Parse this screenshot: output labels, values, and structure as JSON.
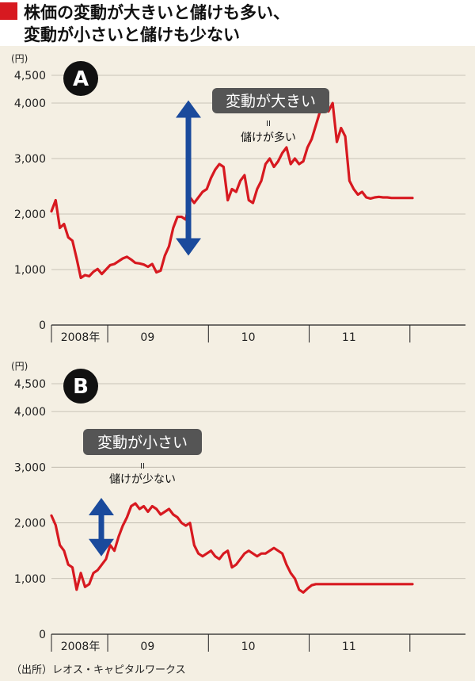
{
  "title": {
    "line1": "株価の変動が大きいと儲けも多い、",
    "line2": "変動が小さいと儲けも少ない"
  },
  "source": "（出所）レオス・キャピタルワークス",
  "colors": {
    "line": "#d71920",
    "arrow": "#1a4a9c",
    "callout": "#555555",
    "background": "#f4efe3",
    "header_mark": "#d71920"
  },
  "chart_data": [
    {
      "type": "line",
      "panel_label": "A",
      "unit": "(円)",
      "callout": "変動が大きい",
      "equals": "II",
      "note": "儲けが多い",
      "yticks": [
        0,
        1000,
        2000,
        3000,
        4000,
        4500
      ],
      "ytick_labels": [
        "0",
        "1,000",
        "2,000",
        "3,000",
        "4,000",
        "4,500"
      ],
      "ylim": [
        0,
        4500
      ],
      "xlim": [
        0,
        48
      ],
      "x_tick_labels": [
        "2008年",
        "09",
        "10",
        "11"
      ],
      "x_label_positions": [
        2.5,
        10.5,
        22.5,
        34.5
      ],
      "year_boundaries": [
        6.7,
        18.7,
        30.7,
        42.7
      ],
      "grid": true,
      "arrow_range": [
        1250,
        4050
      ],
      "series": [
        {
          "x": [
            0,
            0.5,
            1,
            1.5,
            2,
            2.5,
            3,
            3.5,
            4,
            4.5,
            5,
            5.5,
            6,
            6.5,
            7,
            7.5,
            8,
            8.5,
            9,
            9.5,
            10,
            10.5,
            11,
            11.5,
            12,
            12.5,
            13,
            13.5,
            14,
            14.5,
            15,
            15.5,
            16,
            16.5,
            17,
            17.5,
            18,
            18.5,
            19,
            19.5,
            20,
            20.5,
            21,
            21.5,
            22,
            22.5,
            23,
            23.5,
            24,
            24.5,
            25,
            25.5,
            26,
            26.5,
            27,
            27.5,
            28,
            28.5,
            29,
            29.5,
            30,
            30.5,
            31,
            31.5,
            32,
            32.5,
            33,
            33.5,
            34,
            34.5,
            35,
            35.5,
            36,
            36.5,
            37,
            37.5,
            38,
            38.5,
            39,
            39.5,
            40,
            40.5,
            41,
            41.5,
            42,
            42.5,
            43
          ],
          "y": [
            2050,
            2250,
            1750,
            1820,
            1580,
            1520,
            1200,
            850,
            900,
            880,
            960,
            1010,
            920,
            1000,
            1080,
            1100,
            1150,
            1200,
            1230,
            1180,
            1120,
            1110,
            1090,
            1050,
            1100,
            950,
            980,
            1250,
            1420,
            1750,
            1950,
            1950,
            1900,
            2300,
            2200,
            2300,
            2400,
            2450,
            2650,
            2800,
            2900,
            2850,
            2250,
            2450,
            2400,
            2600,
            2700,
            2250,
            2200,
            2450,
            2600,
            2900,
            3000,
            2850,
            2950,
            3100,
            3200,
            2900,
            3000,
            2900,
            2950,
            3200,
            3350,
            3600,
            3850,
            3950,
            3850,
            4000,
            3300,
            3550,
            3400,
            2600,
            2450,
            2350,
            2400,
            2300,
            2280,
            2300,
            2310,
            2300,
            2300,
            2290,
            2290,
            2290,
            2290,
            2290,
            2290
          ]
        }
      ]
    },
    {
      "type": "line",
      "panel_label": "B",
      "unit": "(円)",
      "callout": "変動が小さい",
      "equals": "II",
      "note": "儲けが少ない",
      "yticks": [
        0,
        1000,
        2000,
        3000,
        4000,
        4500
      ],
      "ytick_labels": [
        "0",
        "1,000",
        "2,000",
        "3,000",
        "4,000",
        "4,500"
      ],
      "ylim": [
        0,
        4500
      ],
      "xlim": [
        0,
        48
      ],
      "x_tick_labels": [
        "2008年",
        "09",
        "10",
        "11"
      ],
      "x_label_positions": [
        2.5,
        10.5,
        22.5,
        34.5
      ],
      "year_boundaries": [
        6.7,
        18.7,
        30.7,
        42.7
      ],
      "grid": true,
      "arrow_range": [
        1400,
        2450
      ],
      "series": [
        {
          "x": [
            0,
            0.5,
            1,
            1.5,
            2,
            2.5,
            3,
            3.5,
            4,
            4.5,
            5,
            5.5,
            6,
            6.5,
            7,
            7.5,
            8,
            8.5,
            9,
            9.5,
            10,
            10.5,
            11,
            11.5,
            12,
            12.5,
            13,
            13.5,
            14,
            14.5,
            15,
            15.5,
            16,
            16.5,
            17,
            17.5,
            18,
            18.5,
            19,
            19.5,
            20,
            20.5,
            21,
            21.5,
            22,
            22.5,
            23,
            23.5,
            24,
            24.5,
            25,
            25.5,
            26,
            26.5,
            27,
            27.5,
            28,
            28.5,
            29,
            29.5,
            30,
            30.5,
            31,
            31.5,
            32,
            32.5,
            33,
            33.5,
            34,
            34.5,
            35,
            35.5,
            36,
            36.5,
            37,
            37.5,
            38,
            38.5,
            39,
            39.5,
            40,
            40.5,
            41,
            41.5,
            42,
            42.5,
            43
          ],
          "y": [
            2130,
            1960,
            1600,
            1500,
            1250,
            1200,
            800,
            1100,
            850,
            900,
            1100,
            1150,
            1250,
            1350,
            1600,
            1500,
            1750,
            1950,
            2100,
            2300,
            2350,
            2250,
            2300,
            2200,
            2300,
            2250,
            2150,
            2200,
            2250,
            2150,
            2100,
            2000,
            1950,
            2000,
            1600,
            1450,
            1400,
            1450,
            1500,
            1400,
            1350,
            1450,
            1500,
            1200,
            1250,
            1350,
            1450,
            1500,
            1450,
            1400,
            1450,
            1450,
            1500,
            1550,
            1500,
            1450,
            1250,
            1100,
            1000,
            800,
            750,
            820,
            880,
            900,
            900,
            900,
            900,
            900,
            900,
            900,
            900,
            900,
            900,
            900,
            900,
            900,
            900,
            900,
            900,
            900,
            900,
            900,
            900,
            900,
            900,
            900,
            900
          ]
        }
      ]
    }
  ]
}
